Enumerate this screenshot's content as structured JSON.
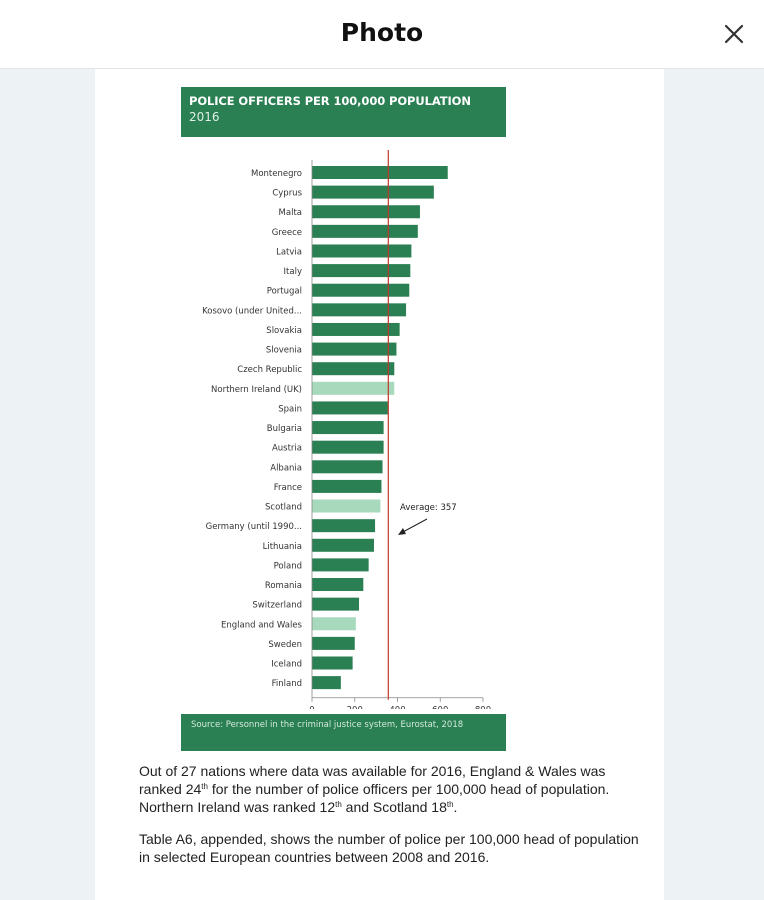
{
  "window": {
    "title": "Photo",
    "close_icon": "close-icon"
  },
  "photo": {
    "chart_data": {
      "type": "bar",
      "orientation": "horizontal",
      "title": "POLICE OFFICERS PER 100,000 POPULATION",
      "subtitle": "2016",
      "categories": [
        "Montenegro",
        "Cyprus",
        "Malta",
        "Greece",
        "Latvia",
        "Italy",
        "Portugal",
        "Kosovo (under United...",
        "Slovakia",
        "Slovenia",
        "Czech Republic",
        "Northern Ireland (UK)",
        "Spain",
        "Bulgaria",
        "Austria",
        "Albania",
        "France",
        "Scotland",
        "Germany (until 1990...",
        "Lithuania",
        "Poland",
        "Romania",
        "Switzerland",
        "England and Wales",
        "Sweden",
        "Iceland",
        "Finland"
      ],
      "values": [
        635,
        570,
        505,
        495,
        465,
        460,
        455,
        440,
        410,
        395,
        385,
        385,
        355,
        335,
        335,
        330,
        325,
        320,
        295,
        290,
        265,
        240,
        220,
        205,
        200,
        190,
        135
      ],
      "highlighted": [
        "Northern Ireland (UK)",
        "Scotland",
        "England and Wales"
      ],
      "colors": {
        "bar": "#2a7f53",
        "highlight": "#a7d9bd",
        "average_line": "#c0392b"
      },
      "xlim": [
        0,
        800
      ],
      "xticks": [
        0,
        200,
        400,
        600,
        800
      ],
      "average": {
        "value": 357,
        "label": "Average: 357"
      },
      "xlabel": "",
      "ylabel": ""
    },
    "source": "Source: Personnel in the criminal justice system, Eurostat, 2018",
    "paragraph1": {
      "before": "Out of 27 nations where data was available for 2016, England & Wales was ranked 24",
      "sup1": "th",
      "middle": " for the number of police officers per 100,000 head of population. Northern Ireland was ranked 12",
      "sup2": "th",
      "middle2": " and Scotland 18",
      "sup3": "th",
      "end": "."
    },
    "paragraph2": "Table A6, appended, shows the number of police per 100,000 head of population in selected European countries between 2008 and 2016."
  }
}
